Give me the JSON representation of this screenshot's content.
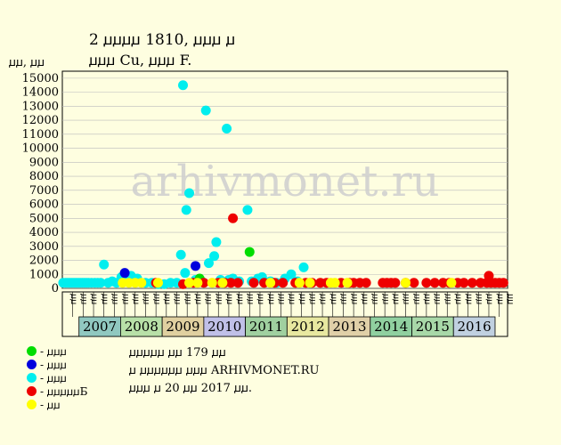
{
  "title_line1": "2 ꙡꙡꙡꙡ 1810, ꙡꙡꙡ ꙡ",
  "title_line2": "ꙡꙡꙡ Cu, ꙡꙡꙡ F.",
  "y_unit_label": "ꙡꙡ, ꙡꙡ",
  "legend": [
    {
      "label": "- ꙡꙡꙡ",
      "color": "#00dd00"
    },
    {
      "label": "- ꙡꙡꙡ",
      "color": "#0000dd"
    },
    {
      "label": "- ꙡꙡꙡ",
      "color": "#00eeee"
    },
    {
      "label": "- ꙡꙡꙡꙡꙡБ",
      "color": "#ee0000"
    },
    {
      "label": "- ꙡꙡ",
      "color": "#ffff00"
    }
  ],
  "notes": [
    "ꙡꙡꙡꙡꙡ ꙡꙡ 179 ꙡꙡ",
    "ꙡ ꙡꙡꙡꙡꙡꙡ ꙡꙡꙡ ARHIVMONET.RU",
    "ꙡꙡꙡ ꙡ 20 ꙡꙡ 2017 ꙡꙡ."
  ],
  "watermark": "arhivmonet.ru",
  "chart_data": {
    "type": "scatter",
    "title": "",
    "ylabel": "ꙡꙡ, ꙡꙡ",
    "ylim": [
      0,
      15500
    ],
    "yticks": [
      0,
      1000,
      2000,
      3000,
      4000,
      5000,
      6000,
      7000,
      8000,
      9000,
      10000,
      11000,
      12000,
      13000,
      14000,
      15000
    ],
    "grid": true,
    "xlim": [
      2006.6,
      2017.3
    ],
    "quarter_labels": [
      "ꙡꙡ",
      "ꙡꙡ",
      "ꙡꙡ",
      "ꙡꙡ"
    ],
    "years": [
      {
        "label": "2007",
        "color": "#90c8c0"
      },
      {
        "label": "2008",
        "color": "#b8e0a8"
      },
      {
        "label": "2009",
        "color": "#e0d0a0"
      },
      {
        "label": "2010",
        "color": "#c0c0e8"
      },
      {
        "label": "2011",
        "color": "#a0d0a0"
      },
      {
        "label": "2012",
        "color": "#e8e8a0"
      },
      {
        "label": "2013",
        "color": "#e0d0a8"
      },
      {
        "label": "2014",
        "color": "#90d0a0"
      },
      {
        "label": "2015",
        "color": "#a8d8a8"
      },
      {
        "label": "2016",
        "color": "#c0d0e0"
      }
    ],
    "series": [
      {
        "color": "#00eeee",
        "points": [
          [
            2006.62,
            400
          ],
          [
            2006.68,
            400
          ],
          [
            2006.73,
            400
          ],
          [
            2006.78,
            400
          ],
          [
            2006.83,
            400
          ],
          [
            2006.88,
            400
          ],
          [
            2006.93,
            400
          ],
          [
            2006.98,
            400
          ],
          [
            2007.03,
            400
          ],
          [
            2007.08,
            400
          ],
          [
            2007.13,
            400
          ],
          [
            2007.18,
            400
          ],
          [
            2007.23,
            400
          ],
          [
            2007.3,
            400
          ],
          [
            2007.38,
            400
          ],
          [
            2007.45,
            400
          ],
          [
            2007.52,
            400
          ],
          [
            2007.6,
            1700
          ],
          [
            2007.7,
            400
          ],
          [
            2007.8,
            500
          ],
          [
            2007.9,
            400
          ],
          [
            2008.02,
            800
          ],
          [
            2008.1,
            600
          ],
          [
            2008.25,
            900
          ],
          [
            2008.4,
            700
          ],
          [
            2008.6,
            400
          ],
          [
            2008.75,
            400
          ],
          [
            2008.9,
            300
          ],
          [
            2009.05,
            300
          ],
          [
            2009.2,
            400
          ],
          [
            2009.35,
            400
          ],
          [
            2009.45,
            2400
          ],
          [
            2009.5,
            14500
          ],
          [
            2009.55,
            1100
          ],
          [
            2009.58,
            5600
          ],
          [
            2009.65,
            6800
          ],
          [
            2009.8,
            600
          ],
          [
            2009.95,
            500
          ],
          [
            2010.05,
            12700
          ],
          [
            2010.12,
            1800
          ],
          [
            2010.25,
            2300
          ],
          [
            2010.3,
            3300
          ],
          [
            2010.4,
            600
          ],
          [
            2010.55,
            11400
          ],
          [
            2010.6,
            600
          ],
          [
            2010.7,
            700
          ],
          [
            2010.85,
            500
          ],
          [
            2011.05,
            5600
          ],
          [
            2011.15,
            500
          ],
          [
            2011.3,
            700
          ],
          [
            2011.4,
            800
          ],
          [
            2011.6,
            500
          ],
          [
            2011.75,
            400
          ],
          [
            2011.95,
            700
          ],
          [
            2012.1,
            1000
          ],
          [
            2012.25,
            500
          ],
          [
            2012.4,
            1500
          ],
          [
            2012.55,
            400
          ]
        ]
      },
      {
        "color": "#0000dd",
        "points": [
          [
            2008.1,
            1100
          ],
          [
            2009.8,
            1600
          ]
        ]
      },
      {
        "color": "#00dd00",
        "points": [
          [
            2009.9,
            700
          ],
          [
            2011.1,
            2600
          ]
        ]
      },
      {
        "color": "#ee0000",
        "points": [
          [
            2008.85,
            400
          ],
          [
            2009.5,
            300
          ],
          [
            2009.75,
            400
          ],
          [
            2010.0,
            400
          ],
          [
            2010.35,
            400
          ],
          [
            2010.5,
            400
          ],
          [
            2010.65,
            400
          ],
          [
            2010.7,
            5000
          ],
          [
            2010.82,
            400
          ],
          [
            2011.2,
            400
          ],
          [
            2011.45,
            400
          ],
          [
            2011.7,
            400
          ],
          [
            2011.9,
            400
          ],
          [
            2012.2,
            400
          ],
          [
            2012.45,
            400
          ],
          [
            2012.6,
            400
          ],
          [
            2012.8,
            400
          ],
          [
            2012.95,
            400
          ],
          [
            2013.3,
            400
          ],
          [
            2013.5,
            400
          ],
          [
            2013.6,
            400
          ],
          [
            2013.75,
            400
          ],
          [
            2013.9,
            400
          ],
          [
            2014.3,
            400
          ],
          [
            2014.4,
            400
          ],
          [
            2014.5,
            400
          ],
          [
            2014.6,
            400
          ],
          [
            2014.85,
            400
          ],
          [
            2015.05,
            400
          ],
          [
            2015.35,
            400
          ],
          [
            2015.55,
            400
          ],
          [
            2015.75,
            400
          ],
          [
            2015.9,
            400
          ],
          [
            2016.1,
            400
          ],
          [
            2016.25,
            400
          ],
          [
            2016.45,
            400
          ],
          [
            2016.65,
            400
          ],
          [
            2016.8,
            400
          ],
          [
            2016.9,
            400
          ],
          [
            2017.0,
            400
          ],
          [
            2017.1,
            400
          ],
          [
            2017.2,
            400
          ],
          [
            2016.85,
            900
          ]
        ]
      },
      {
        "color": "#ffff00",
        "points": [
          [
            2008.05,
            400
          ],
          [
            2008.2,
            400
          ],
          [
            2008.35,
            400
          ],
          [
            2008.5,
            400
          ],
          [
            2008.9,
            400
          ],
          [
            2009.65,
            400
          ],
          [
            2009.85,
            400
          ],
          [
            2010.2,
            400
          ],
          [
            2010.45,
            400
          ],
          [
            2011.6,
            400
          ],
          [
            2012.3,
            400
          ],
          [
            2012.55,
            400
          ],
          [
            2013.05,
            400
          ],
          [
            2013.15,
            400
          ],
          [
            2013.45,
            400
          ],
          [
            2014.85,
            400
          ],
          [
            2015.95,
            400
          ]
        ]
      }
    ]
  }
}
